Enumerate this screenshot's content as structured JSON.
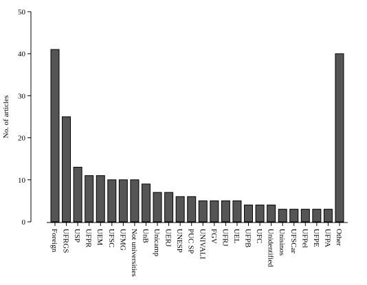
{
  "chart_data": {
    "type": "bar",
    "y_label": "No. of articles",
    "categories": [
      "Foreign",
      "UFRGS",
      "USP",
      "UFPR",
      "UEM",
      "UFSC",
      "UFMG",
      "Not universities",
      "UnB",
      "Unicamp",
      "UERJ",
      "UNESP",
      "PUC SP",
      "UNIVALI",
      "FGV",
      "UFRJ",
      "UEL",
      "UFPB",
      "UFC",
      "Unidentified",
      "Unisinos",
      "UFSCar",
      "UFPel",
      "UFPE",
      "UFPA",
      "Other"
    ],
    "values": [
      41,
      25,
      13,
      11,
      11,
      10,
      10,
      10,
      9,
      7,
      7,
      6,
      6,
      5,
      5,
      5,
      5,
      4,
      4,
      4,
      3,
      3,
      3,
      3,
      3,
      40
    ],
    "color": "#555555",
    "ylim": [
      0,
      50
    ],
    "yticks": [
      0,
      10,
      20,
      30,
      40,
      50
    ]
  }
}
